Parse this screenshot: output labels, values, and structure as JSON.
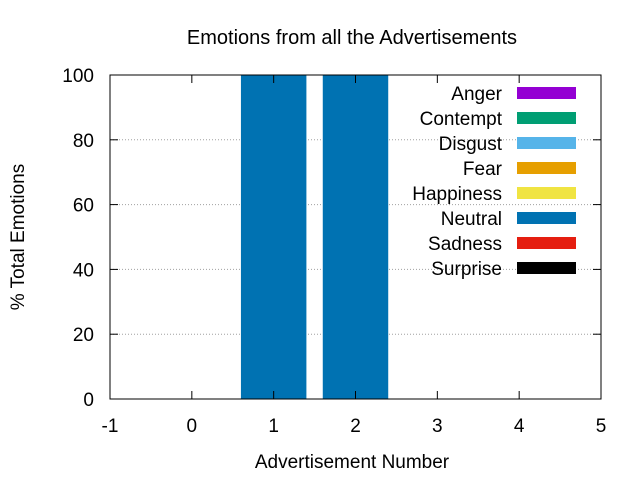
{
  "chart_data": {
    "type": "bar",
    "stacked": true,
    "title": "Emotions from all the Advertisements",
    "xlabel": "Advertisement Number",
    "ylabel": "% Total Emotions",
    "xlim": [
      -1,
      5
    ],
    "ylim": [
      0,
      100
    ],
    "xticks": [
      "-1",
      "0",
      "1",
      "2",
      "3",
      "4",
      "5"
    ],
    "yticks": [
      "0",
      "20",
      "40",
      "60",
      "80",
      "100"
    ],
    "grid": true,
    "legend_position": "top-right",
    "categories": [
      1,
      2
    ],
    "series": [
      {
        "name": "Anger",
        "color": "#9400d3",
        "values": [
          0,
          0
        ]
      },
      {
        "name": "Contempt",
        "color": "#009e73",
        "values": [
          0,
          0
        ]
      },
      {
        "name": "Disgust",
        "color": "#56b4e9",
        "values": [
          0,
          0
        ]
      },
      {
        "name": "Fear",
        "color": "#e69f00",
        "values": [
          0,
          0
        ]
      },
      {
        "name": "Happiness",
        "color": "#f0e442",
        "values": [
          0,
          0
        ]
      },
      {
        "name": "Neutral",
        "color": "#0072b2",
        "values": [
          100,
          100
        ]
      },
      {
        "name": "Sadness",
        "color": "#e51e10",
        "values": [
          0,
          0
        ]
      },
      {
        "name": "Surprise",
        "color": "#000000",
        "values": [
          0,
          0
        ]
      }
    ]
  }
}
